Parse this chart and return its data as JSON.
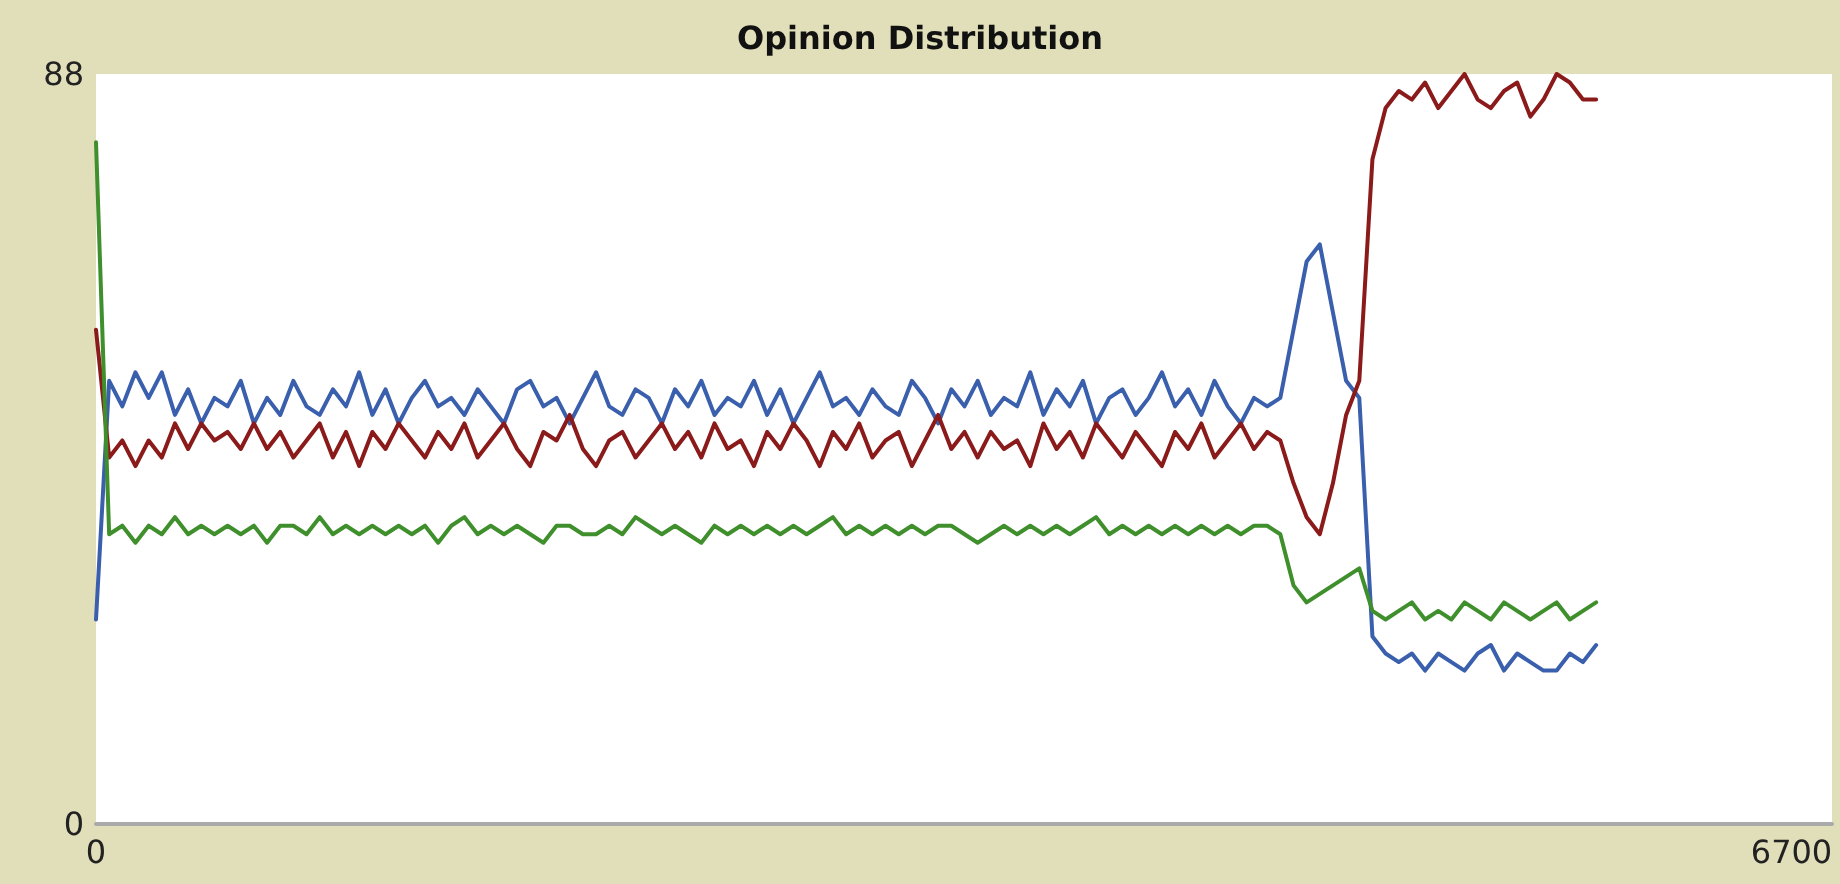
{
  "chart_data": {
    "type": "line",
    "title": "Opinion Distribution",
    "xlim": [
      0,
      6860
    ],
    "xticks": [
      0,
      6700
    ],
    "ylim": [
      0,
      88
    ],
    "yticks": [
      0,
      88
    ],
    "grid": false,
    "marker": "none",
    "tick_labels": "xy",
    "x": [
      0,
      52,
      104,
      156,
      208,
      260,
      312,
      364,
      416,
      468,
      520,
      572,
      624,
      676,
      728,
      780,
      832,
      884,
      936,
      988,
      1040,
      1092,
      1144,
      1196,
      1248,
      1300,
      1352,
      1404,
      1456,
      1508,
      1560,
      1612,
      1664,
      1716,
      1768,
      1820,
      1872,
      1924,
      1976,
      2028,
      2080,
      2132,
      2184,
      2236,
      2288,
      2340,
      2392,
      2444,
      2496,
      2548,
      2600,
      2652,
      2704,
      2756,
      2808,
      2860,
      2912,
      2964,
      3016,
      3068,
      3120,
      3172,
      3224,
      3276,
      3328,
      3380,
      3432,
      3484,
      3536,
      3588,
      3640,
      3692,
      3744,
      3796,
      3848,
      3900,
      3952,
      4004,
      4056,
      4108,
      4160,
      4212,
      4264,
      4316,
      4368,
      4420,
      4472,
      4524,
      4576,
      4628,
      4680,
      4732,
      4784,
      4836,
      4888,
      4940,
      4992,
      5044,
      5096,
      5148,
      5200,
      5252,
      5304,
      5356,
      5408,
      5460,
      5512,
      5564,
      5616,
      5668,
      5720,
      5772,
      5824,
      5876,
      5928
    ],
    "series": [
      {
        "color": "#3a5fad",
        "values": [
          24,
          52,
          49,
          53,
          50,
          53,
          48,
          51,
          47,
          50,
          49,
          52,
          47,
          50,
          48,
          52,
          49,
          48,
          51,
          49,
          53,
          48,
          51,
          47,
          50,
          52,
          49,
          50,
          48,
          51,
          49,
          47,
          51,
          52,
          49,
          50,
          47,
          50,
          53,
          49,
          48,
          51,
          50,
          47,
          51,
          49,
          52,
          48,
          50,
          49,
          52,
          48,
          51,
          47,
          50,
          53,
          49,
          50,
          48,
          51,
          49,
          48,
          52,
          50,
          47,
          51,
          49,
          52,
          48,
          50,
          49,
          53,
          48,
          51,
          49,
          52,
          47,
          50,
          51,
          48,
          50,
          53,
          49,
          51,
          48,
          52,
          49,
          47,
          50,
          49,
          50,
          58,
          66,
          68,
          60,
          52,
          50,
          22,
          20,
          19,
          20,
          18,
          20,
          19,
          18,
          20,
          21,
          18,
          20,
          19,
          18,
          18,
          20,
          19,
          21
        ]
      },
      {
        "color": "#8b1a1a",
        "values": [
          58,
          43,
          45,
          42,
          45,
          43,
          47,
          44,
          47,
          45,
          46,
          44,
          47,
          44,
          46,
          43,
          45,
          47,
          43,
          46,
          42,
          46,
          44,
          47,
          45,
          43,
          46,
          44,
          47,
          43,
          45,
          47,
          44,
          42,
          46,
          45,
          48,
          44,
          42,
          45,
          46,
          43,
          45,
          47,
          44,
          46,
          43,
          47,
          44,
          45,
          42,
          46,
          44,
          47,
          45,
          42,
          46,
          44,
          47,
          43,
          45,
          46,
          42,
          45,
          48,
          44,
          46,
          43,
          46,
          44,
          45,
          42,
          47,
          44,
          46,
          43,
          47,
          45,
          43,
          46,
          44,
          42,
          46,
          44,
          47,
          43,
          45,
          47,
          44,
          46,
          45,
          40,
          36,
          34,
          40,
          48,
          52,
          78,
          84,
          86,
          85,
          87,
          84,
          86,
          88,
          85,
          84,
          86,
          87,
          83,
          85,
          88,
          87,
          85,
          85
        ]
      },
      {
        "color": "#3f8f2c",
        "values": [
          80,
          34,
          35,
          33,
          35,
          34,
          36,
          34,
          35,
          34,
          35,
          34,
          35,
          33,
          35,
          35,
          34,
          36,
          34,
          35,
          34,
          35,
          34,
          35,
          34,
          35,
          33,
          35,
          36,
          34,
          35,
          34,
          35,
          34,
          33,
          35,
          35,
          34,
          34,
          35,
          34,
          36,
          35,
          34,
          35,
          34,
          33,
          35,
          34,
          35,
          34,
          35,
          34,
          35,
          34,
          35,
          36,
          34,
          35,
          34,
          35,
          34,
          35,
          34,
          35,
          35,
          34,
          33,
          34,
          35,
          34,
          35,
          34,
          35,
          34,
          35,
          36,
          34,
          35,
          34,
          35,
          34,
          35,
          34,
          35,
          34,
          35,
          34,
          35,
          35,
          34,
          28,
          26,
          27,
          28,
          29,
          30,
          25,
          24,
          25,
          26,
          24,
          25,
          24,
          26,
          25,
          24,
          26,
          25,
          24,
          25,
          26,
          24,
          25,
          26
        ]
      }
    ]
  }
}
